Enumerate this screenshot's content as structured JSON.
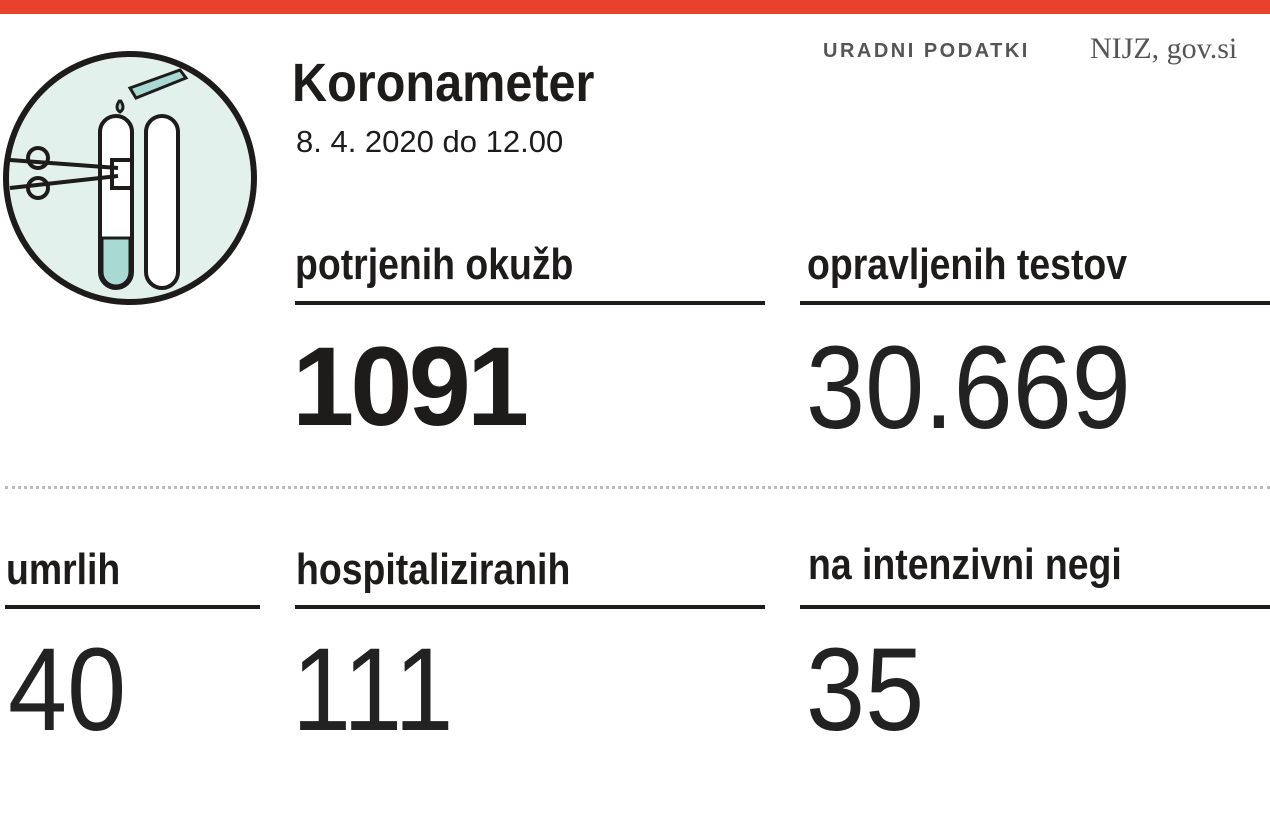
{
  "header": {
    "title": "Koronameter",
    "date": "8. 4. 2020 do 12.00",
    "source_label": "URADNI PODATKI",
    "source": "NIJZ, gov.si"
  },
  "stats": [
    {
      "label": "potrjenih okužb",
      "value": "1091"
    },
    {
      "label": "opravljenih testov",
      "value": "30.669"
    },
    {
      "label": "umrlih",
      "value": "40"
    },
    {
      "label": "hospitaliziranih",
      "value": "111"
    },
    {
      "label": "na intenzivni negi",
      "value": "35"
    }
  ]
}
